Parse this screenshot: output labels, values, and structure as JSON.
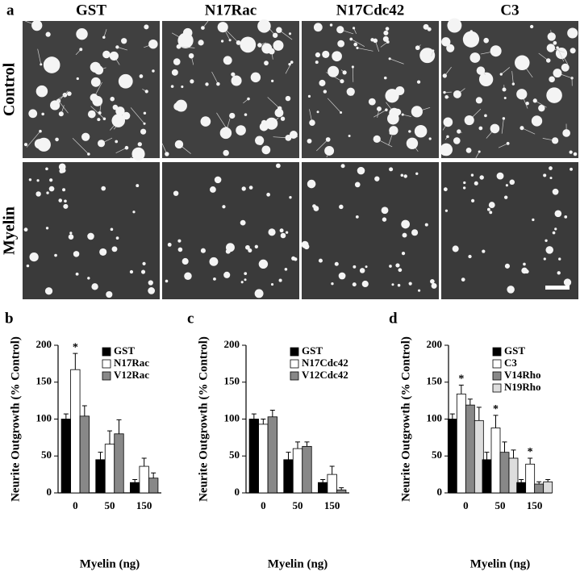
{
  "panel_a": {
    "label": "a",
    "columns": [
      "GST",
      "N17Rac",
      "N17Cdc42",
      "C3"
    ],
    "rows": [
      "Control",
      "Myelin"
    ]
  },
  "chart_data": [
    {
      "type": "bar",
      "panel": "b",
      "ylabel": "Neurite Outgrowth (% Control)",
      "xlabel": "Myelin (ng)",
      "categories": [
        "0",
        "50",
        "150"
      ],
      "ylim": [
        0,
        200
      ],
      "yticks": [
        0,
        50,
        100,
        150,
        200
      ],
      "series": [
        {
          "name": "GST",
          "color": "#000000",
          "values": [
            100,
            45,
            14
          ],
          "errors": [
            7,
            10,
            4
          ],
          "significance": [
            null,
            null,
            null
          ]
        },
        {
          "name": "N17Rac",
          "color": "#ffffff",
          "values": [
            167,
            66,
            36
          ],
          "errors": [
            22,
            18,
            11
          ],
          "significance": [
            "*",
            null,
            null
          ]
        },
        {
          "name": "V12Rac",
          "color": "#888888",
          "values": [
            104,
            80,
            20
          ],
          "errors": [
            14,
            19,
            7
          ],
          "significance": [
            null,
            null,
            null
          ]
        }
      ]
    },
    {
      "type": "bar",
      "panel": "c",
      "ylabel": "Neurite Outgrowth (% Control)",
      "xlabel": "Myelin (ng)",
      "categories": [
        "0",
        "50",
        "150"
      ],
      "ylim": [
        0,
        200
      ],
      "yticks": [
        0,
        50,
        100,
        150,
        200
      ],
      "series": [
        {
          "name": "GST",
          "color": "#000000",
          "values": [
            100,
            45,
            14
          ],
          "errors": [
            7,
            10,
            4
          ],
          "significance": [
            null,
            null,
            null
          ]
        },
        {
          "name": "N17Cdc42",
          "color": "#ffffff",
          "values": [
            93,
            60,
            25
          ],
          "errors": [
            7,
            9,
            11
          ],
          "significance": [
            null,
            null,
            null
          ]
        },
        {
          "name": "V12Cdc42",
          "color": "#888888",
          "values": [
            103,
            63,
            4
          ],
          "errors": [
            9,
            6,
            3
          ],
          "significance": [
            null,
            null,
            null
          ]
        }
      ]
    },
    {
      "type": "bar",
      "panel": "d",
      "ylabel": "Neurite Outgrowth (% Control)",
      "xlabel": "Myelin (ng)",
      "categories": [
        "0",
        "50",
        "150"
      ],
      "ylim": [
        0,
        200
      ],
      "yticks": [
        0,
        50,
        100,
        150,
        200
      ],
      "series": [
        {
          "name": "GST",
          "color": "#000000",
          "values": [
            100,
            45,
            14
          ],
          "errors": [
            7,
            10,
            4
          ],
          "significance": [
            null,
            null,
            null
          ]
        },
        {
          "name": "C3",
          "color": "#ffffff",
          "values": [
            134,
            88,
            39
          ],
          "errors": [
            12,
            17,
            8
          ],
          "significance": [
            "*",
            "*",
            "*"
          ]
        },
        {
          "name": "V14Rho",
          "color": "#888888",
          "values": [
            119,
            55,
            12
          ],
          "errors": [
            8,
            14,
            3
          ],
          "significance": [
            null,
            null,
            null
          ]
        },
        {
          "name": "N19Rho",
          "color": "#dddddd",
          "values": [
            98,
            47,
            15
          ],
          "errors": [
            18,
            11,
            3
          ],
          "significance": [
            null,
            null,
            null
          ]
        }
      ]
    }
  ]
}
